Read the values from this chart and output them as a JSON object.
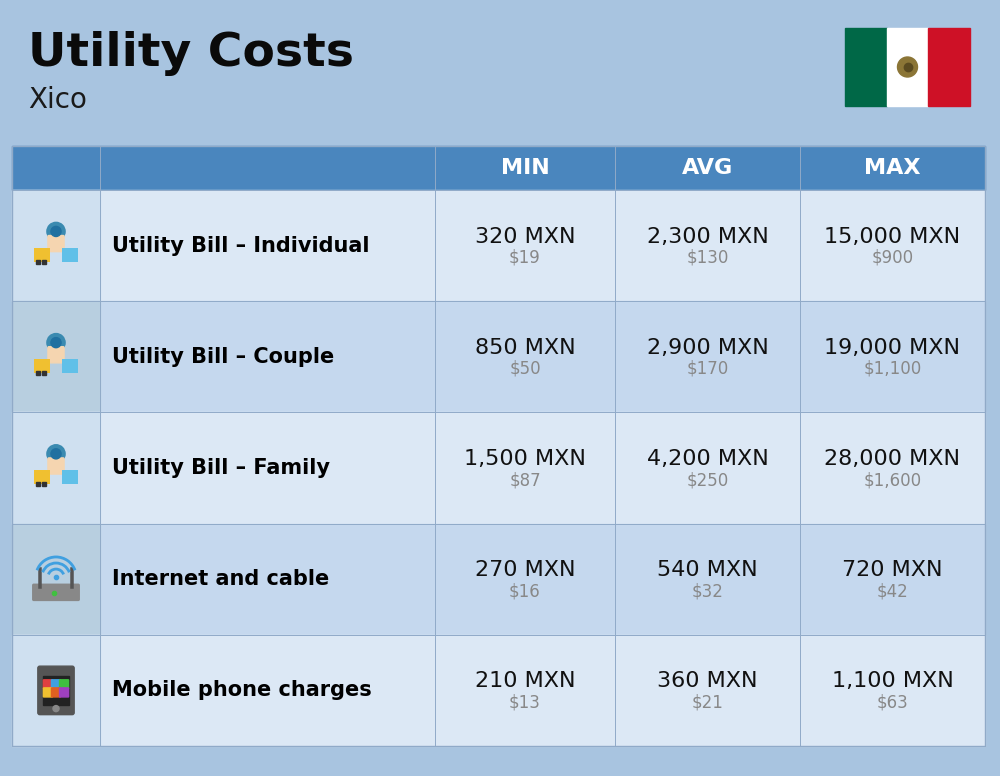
{
  "title": "Utility Costs",
  "subtitle": "Xico",
  "background_color": "#a8c4e0",
  "header_color": "#4a86be",
  "header_text_color": "#ffffff",
  "row_color_even": "#dce8f5",
  "row_color_odd": "#c5d8ee",
  "icon_col_color_even": "#cfe0f0",
  "icon_col_color_odd": "#b8cfe0",
  "cell_border_color": "#90aac8",
  "headers": [
    "MIN",
    "AVG",
    "MAX"
  ],
  "rows": [
    {
      "label": "Utility Bill – Individual",
      "min_mxn": "320 MXN",
      "min_usd": "$19",
      "avg_mxn": "2,300 MXN",
      "avg_usd": "$130",
      "max_mxn": "15,000 MXN",
      "max_usd": "$900"
    },
    {
      "label": "Utility Bill – Couple",
      "min_mxn": "850 MXN",
      "min_usd": "$50",
      "avg_mxn": "2,900 MXN",
      "avg_usd": "$170",
      "max_mxn": "19,000 MXN",
      "max_usd": "$1,100"
    },
    {
      "label": "Utility Bill – Family",
      "min_mxn": "1,500 MXN",
      "min_usd": "$87",
      "avg_mxn": "4,200 MXN",
      "avg_usd": "$250",
      "max_mxn": "28,000 MXN",
      "max_usd": "$1,600"
    },
    {
      "label": "Internet and cable",
      "min_mxn": "270 MXN",
      "min_usd": "$16",
      "avg_mxn": "540 MXN",
      "avg_usd": "$32",
      "max_mxn": "720 MXN",
      "max_usd": "$42"
    },
    {
      "label": "Mobile phone charges",
      "min_mxn": "210 MXN",
      "min_usd": "$13",
      "avg_mxn": "360 MXN",
      "avg_usd": "$21",
      "max_mxn": "1,100 MXN",
      "max_usd": "$63"
    }
  ],
  "title_fontsize": 34,
  "subtitle_fontsize": 20,
  "header_fontsize": 16,
  "label_fontsize": 15,
  "value_fontsize": 16,
  "usd_fontsize": 12,
  "usd_color": "#888888",
  "label_color": "#000000",
  "value_color": "#111111",
  "flag_green": "#006847",
  "flag_white": "#ffffff",
  "flag_red": "#ce1126",
  "flag_eagle": "#8B7536"
}
